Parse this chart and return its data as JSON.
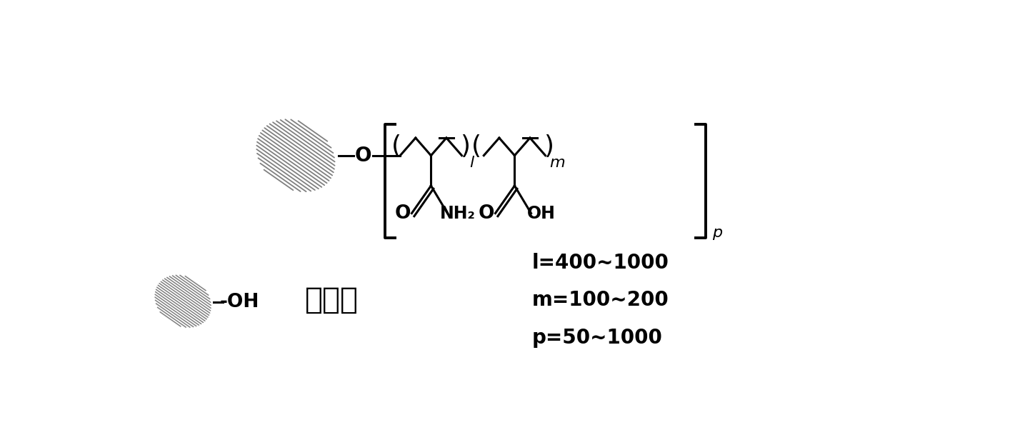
{
  "bg_color": "#ffffff",
  "line_color": "#000000",
  "kaolin_color": "#808080",
  "label_l": "l",
  "label_m": "m",
  "label_p": "p",
  "label_O": "O",
  "label_NH2": "NH₂",
  "label_OH": "OH",
  "label_kaolin": "高岭土",
  "range_l": "l=400~1000",
  "range_m": "m=100~200",
  "range_p": "p=50~1000",
  "label_dash_OH": "-OH",
  "fontsize_label": 20,
  "fontsize_subscript": 16,
  "fontsize_range": 20,
  "fontsize_kaolin": 30
}
